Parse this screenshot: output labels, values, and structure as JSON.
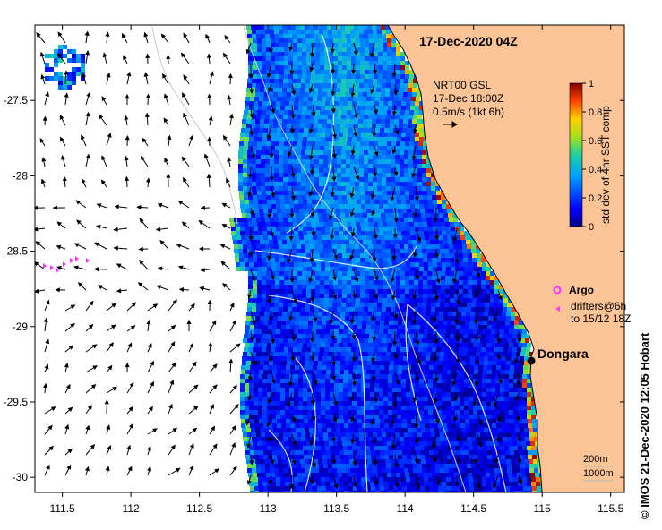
{
  "title": "17-Dec-2020 04Z",
  "current_legend": {
    "line1": "NRT00 GSL",
    "line2": "17-Dec 18:00Z",
    "line3": "0.5m/s (1kt 6h)"
  },
  "colorbar": {
    "label": "std dev of 4hr SST comp",
    "ticks": [
      "0",
      "0.2",
      "0.4",
      "0.6",
      "0.8",
      "1"
    ]
  },
  "legend": {
    "argo": "Argo",
    "drifters_line1": "drifters@6h",
    "drifters_line2": "to 15/12 18Z"
  },
  "place": {
    "name": "Dongara"
  },
  "isobaths": {
    "a": "200m",
    "b": "1000m"
  },
  "credit": "© IMOS 21-Dec-2020 12:05 Hobart",
  "chart_data": {
    "type": "heatmap",
    "x_ticks": [
      "111.5",
      "112",
      "112.5",
      "113",
      "113.5",
      "114",
      "114.5",
      "115",
      "115.5"
    ],
    "y_ticks": [
      "-27.5",
      "-28",
      "-28.5",
      "-29",
      "-29.5",
      "-30"
    ],
    "xlim": [
      111.3,
      115.6
    ],
    "ylim": [
      -30.1,
      -27.0
    ],
    "colorscale_range": [
      0,
      1
    ],
    "land_color": "#fbc497",
    "argo_color": "#ff33ff",
    "drifter_color": "#ff33ff"
  }
}
